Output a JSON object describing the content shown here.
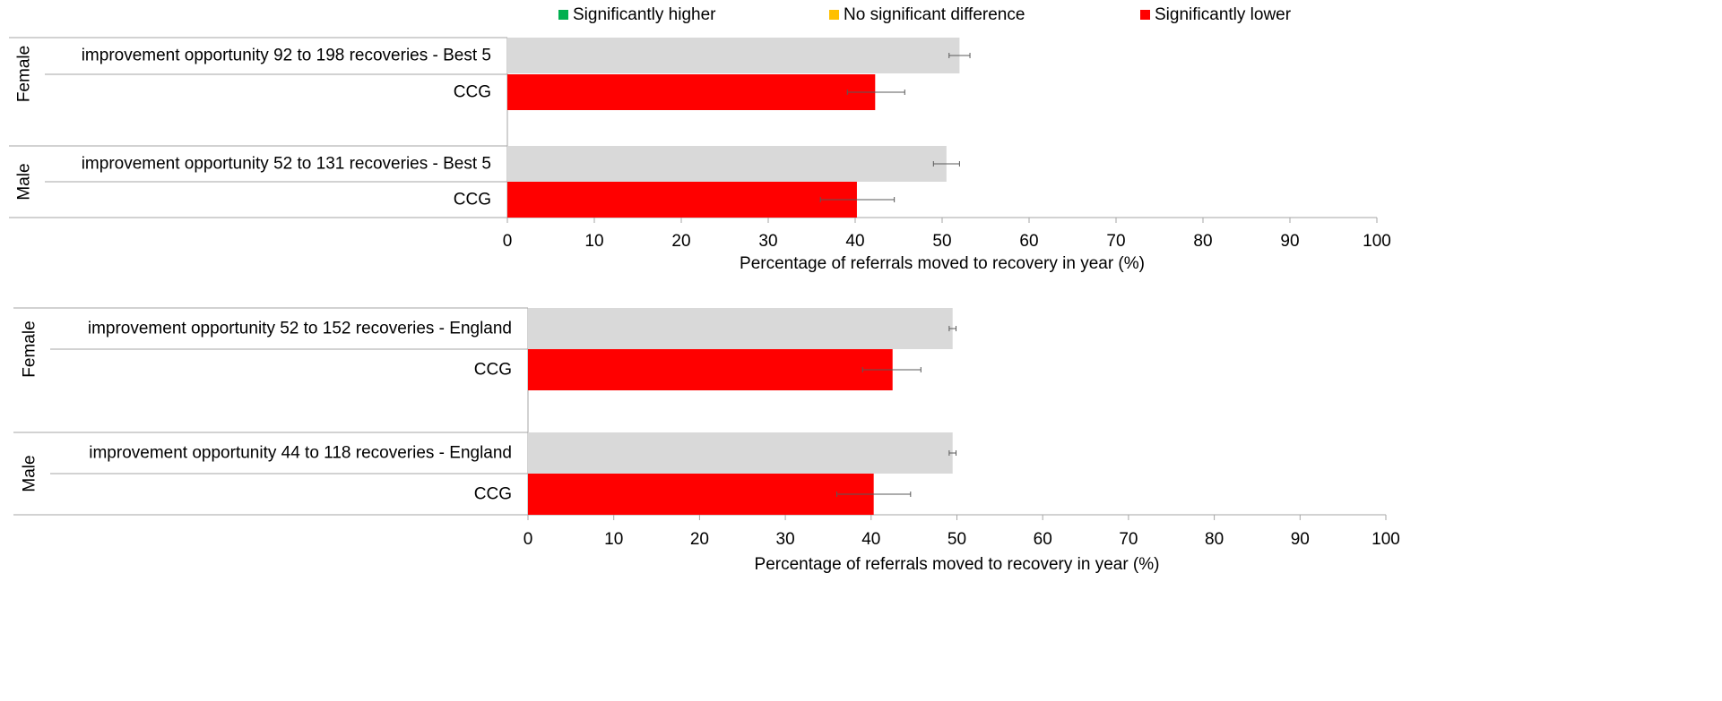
{
  "legend": {
    "items": [
      {
        "label": "Significantly higher",
        "color": "#00b050"
      },
      {
        "label": "No significant difference",
        "color": "#ffc000"
      },
      {
        "label": "Significantly lower",
        "color": "#ff0000"
      }
    ]
  },
  "colors": {
    "comparator": "#d9d9d9",
    "lower": "#ff0000",
    "axis": "#a6a6a6",
    "error_bar": "#595959"
  },
  "chart_data": [
    {
      "type": "bar",
      "orientation": "horizontal",
      "xlabel": "Percentage of referrals moved to recovery in year (%)",
      "xlim": [
        0,
        100
      ],
      "xticks": [
        "0",
        "10",
        "20",
        "30",
        "40",
        "50",
        "60",
        "70",
        "80",
        "90",
        "100"
      ],
      "groups": [
        {
          "label": "Female",
          "bars": [
            {
              "label": "improvement opportunity 92 to 198 recoveries - Best 5",
              "value": 52.0,
              "ci": [
                50.8,
                53.2
              ],
              "color": "#d9d9d9"
            },
            {
              "label": "CCG",
              "value": 42.3,
              "ci": [
                39.1,
                45.7
              ],
              "color": "#ff0000"
            }
          ]
        },
        {
          "label": "Male",
          "bars": [
            {
              "label": "improvement opportunity 52 to 131 recoveries - Best 5",
              "value": 50.5,
              "ci": [
                49.0,
                52.0
              ],
              "color": "#d9d9d9"
            },
            {
              "label": "CCG",
              "value": 40.2,
              "ci": [
                36.0,
                44.5
              ],
              "color": "#ff0000"
            }
          ]
        }
      ]
    },
    {
      "type": "bar",
      "orientation": "horizontal",
      "xlabel": "Percentage of referrals moved  to recovery in year (%)",
      "xlim": [
        0,
        100
      ],
      "xticks": [
        "0",
        "10",
        "20",
        "30",
        "40",
        "50",
        "60",
        "70",
        "80",
        "90",
        "100"
      ],
      "groups": [
        {
          "label": "Female",
          "bars": [
            {
              "label": "improvement opportunity 52 to 152 recoveries - England",
              "value": 49.5,
              "ci": [
                49.1,
                49.9
              ],
              "color": "#d9d9d9"
            },
            {
              "label": "CCG",
              "value": 42.5,
              "ci": [
                39.0,
                45.8
              ],
              "color": "#ff0000"
            }
          ]
        },
        {
          "label": "Male",
          "bars": [
            {
              "label": "improvement opportunity 44 to 118 recoveries - England",
              "value": 49.5,
              "ci": [
                49.1,
                49.9
              ],
              "color": "#d9d9d9"
            },
            {
              "label": "CCG",
              "value": 40.3,
              "ci": [
                36.0,
                44.6
              ],
              "color": "#ff0000"
            }
          ]
        }
      ]
    }
  ]
}
